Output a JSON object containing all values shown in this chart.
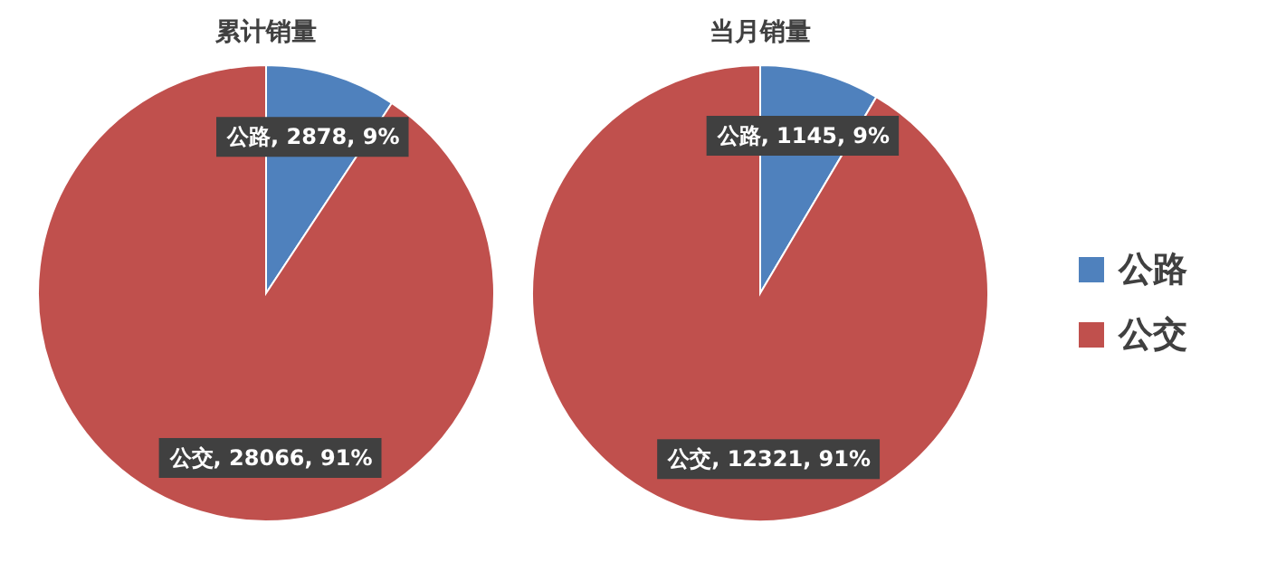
{
  "chart_data": [
    {
      "type": "pie",
      "title": "累计销量",
      "categories": [
        "公路",
        "公交"
      ],
      "values": [
        2878,
        28066
      ],
      "colors": [
        "#4f81bd",
        "#c0504d"
      ],
      "value_labels": [
        ", 2878, 9%",
        ", 28066, 91%"
      ],
      "legend": "right"
    },
    {
      "type": "pie",
      "title": "当月销量",
      "categories": [
        "公路",
        "公交"
      ],
      "values": [
        1145,
        12321
      ],
      "colors": [
        "#4f81bd",
        "#c0504d"
      ],
      "value_labels": [
        ", 1145, 9%",
        ", 12321, 91%"
      ]
    }
  ]
}
